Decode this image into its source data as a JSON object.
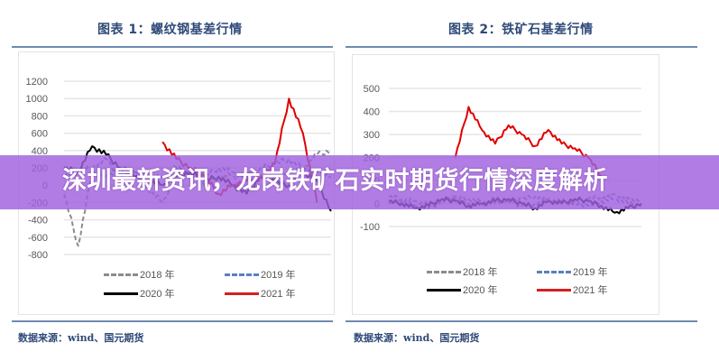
{
  "page_title": "深圳最新资讯，龙岗铁矿石实时期货行情深度解析",
  "charts": [
    {
      "title": "图表 1：螺纹钢基差行情",
      "source": "数据来源：wind、国元期货",
      "y_ticks": [
        "1200",
        "1000",
        "800",
        "600",
        "400",
        "200",
        "0",
        "-200",
        "-400",
        "-600",
        "-800"
      ],
      "legend": [
        "2018 年",
        "2019 年",
        "2020 年",
        "2021 年"
      ]
    },
    {
      "title": "图表 2：铁矿石基差行情",
      "source": "数据来源：wind、国元期货",
      "y_ticks": [
        "500",
        "400",
        "300",
        "200",
        "100",
        "0",
        "-100"
      ],
      "legend": [
        "2018 年",
        "2019 年",
        "2020 年",
        "2021 年"
      ]
    }
  ],
  "colors": {
    "s2018": "#8c8c8c",
    "s2019": "#5b7fbf",
    "s2020": "#000000",
    "s2021": "#e00000",
    "overlay": "#a060de",
    "title_text": "#2f4a78"
  },
  "chart_data": [
    {
      "type": "line",
      "title": "图表 1：螺纹钢基差行情",
      "xlabel": "",
      "ylabel": "",
      "ylim": [
        -800,
        1200
      ],
      "grid": true,
      "legend_position": "bottom",
      "x": [
        1,
        2,
        3,
        4,
        5,
        6,
        7,
        8,
        9,
        10,
        11,
        12,
        13,
        14,
        15,
        16,
        17,
        18,
        19,
        20
      ],
      "series": [
        {
          "name": "2018 年",
          "style": "dashed",
          "values": [
            -100,
            -700,
            150,
            100,
            200,
            150,
            -50,
            -200,
            100,
            150,
            0,
            100,
            120,
            -100,
            100,
            80,
            150,
            200,
            350,
            400
          ]
        },
        {
          "name": "2019 年",
          "style": "dashed",
          "values": [
            100,
            150,
            200,
            300,
            100,
            150,
            50,
            100,
            200,
            150,
            100,
            200,
            150,
            100,
            200,
            250,
            300,
            200,
            150,
            100
          ]
        },
        {
          "name": "2020 年",
          "style": "solid",
          "values": [
            200,
            150,
            450,
            350,
            200,
            100,
            50,
            0,
            100,
            150,
            50,
            100,
            0,
            -100,
            100,
            50,
            0,
            150,
            50,
            -300
          ]
        },
        {
          "name": "2021 年",
          "style": "solid",
          "values": [
            null,
            null,
            null,
            null,
            null,
            null,
            null,
            500,
            300,
            200,
            100,
            -100,
            0,
            50,
            100,
            250,
            1000,
            600,
            -200,
            null
          ]
        }
      ]
    },
    {
      "type": "line",
      "title": "图表 2：铁矿石基差行情",
      "xlabel": "",
      "ylabel": "",
      "ylim": [
        -100,
        500
      ],
      "grid": true,
      "legend_position": "bottom",
      "x": [
        1,
        2,
        3,
        4,
        5,
        6,
        7,
        8,
        9,
        10,
        11,
        12,
        13,
        14,
        15,
        16,
        17,
        18,
        19,
        20
      ],
      "series": [
        {
          "name": "2018 年",
          "style": "dashed",
          "values": [
            30,
            20,
            10,
            0,
            20,
            30,
            20,
            10,
            0,
            10,
            20,
            30,
            10,
            0,
            10,
            20,
            30,
            40,
            20,
            10
          ]
        },
        {
          "name": "2019 年",
          "style": "dashed",
          "values": [
            0,
            10,
            -10,
            -20,
            10,
            20,
            0,
            -10,
            20,
            10,
            -10,
            0,
            20,
            10,
            0,
            -10,
            10,
            20,
            0,
            -10
          ]
        },
        {
          "name": "2020 年",
          "style": "solid",
          "values": [
            10,
            0,
            -20,
            -10,
            20,
            10,
            -10,
            0,
            10,
            20,
            0,
            -20,
            10,
            0,
            20,
            10,
            -10,
            -40,
            -20,
            0
          ]
        },
        {
          "name": "2021 年",
          "style": "solid",
          "values": [
            null,
            null,
            null,
            null,
            null,
            200,
            420,
            320,
            260,
            340,
            300,
            250,
            320,
            260,
            240,
            200,
            120,
            null,
            null,
            null
          ]
        }
      ]
    }
  ]
}
